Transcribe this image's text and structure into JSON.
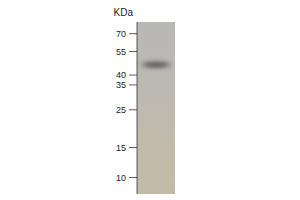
{
  "chart_data": {
    "type": "blot",
    "y_label": "KDa",
    "values": [
      46
    ],
    "log": "y",
    "ylim": [
      8,
      82
    ],
    "yticks": [
      70,
      55,
      40,
      35,
      25,
      15,
      10
    ]
  }
}
